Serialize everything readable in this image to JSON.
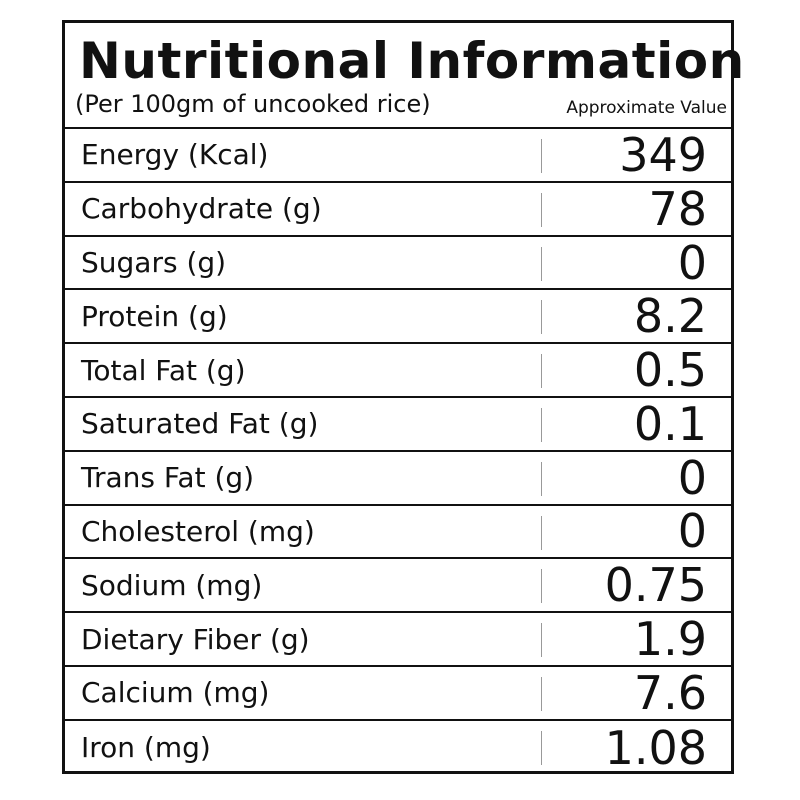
{
  "panel": {
    "title": "Nutritional Information",
    "subtitle": "(Per 100gm of uncooked rice)",
    "approximate_label": "Approximate Value"
  },
  "nutrients": [
    {
      "label": "Energy (Kcal)",
      "value": "349"
    },
    {
      "label": "Carbohydrate (g)",
      "value": "78"
    },
    {
      "label": "Sugars (g)",
      "value": "0"
    },
    {
      "label": "Protein (g)",
      "value": "8.2"
    },
    {
      "label": "Total Fat (g)",
      "value": "0.5"
    },
    {
      "label": "Saturated Fat (g)",
      "value": "0.1"
    },
    {
      "label": "Trans Fat (g)",
      "value": "0"
    },
    {
      "label": "Cholesterol (mg)",
      "value": "0"
    },
    {
      "label": "Sodium (mg)",
      "value": "0.75"
    },
    {
      "label": "Dietary Fiber (g)",
      "value": "1.9"
    },
    {
      "label": "Calcium (mg)",
      "value": "7.6"
    },
    {
      "label": "Iron (mg)",
      "value": "1.08"
    }
  ]
}
